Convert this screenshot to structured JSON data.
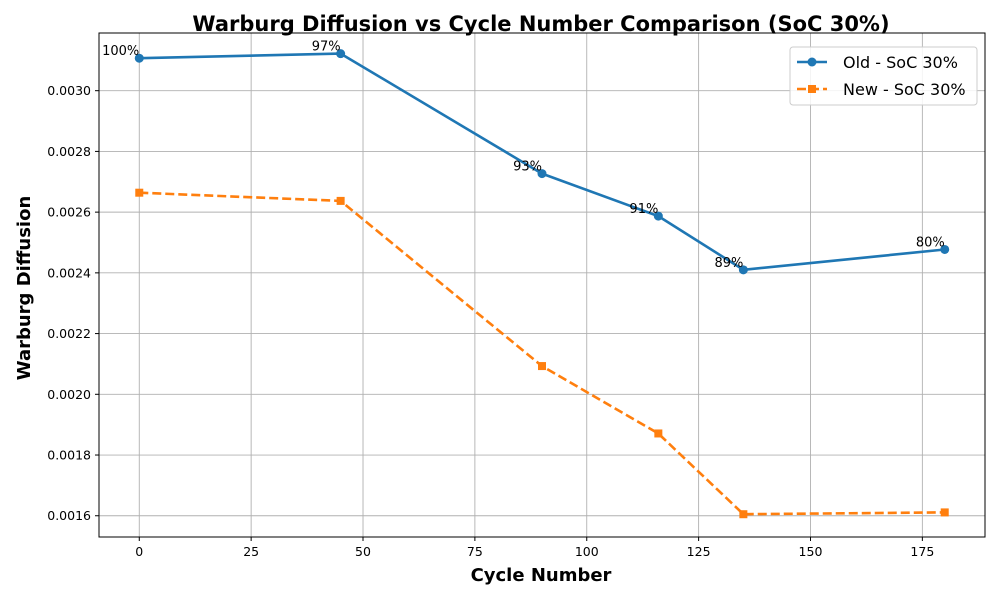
{
  "chart_data": {
    "type": "line",
    "title": "Warburg Diffusion vs Cycle Number Comparison (SoC 30%)",
    "xlabel": "Cycle Number",
    "ylabel": "Warburg Diffusion",
    "xlim": [
      -9,
      189
    ],
    "ylim": [
      0.00153,
      0.00319
    ],
    "xticks": [
      0,
      25,
      50,
      75,
      100,
      125,
      150,
      175
    ],
    "xtick_labels": [
      "0",
      "25",
      "50",
      "75",
      "100",
      "125",
      "150",
      "175"
    ],
    "yticks": [
      0.0016,
      0.0018,
      0.002,
      0.0022,
      0.0024,
      0.0026,
      0.0028,
      0.003
    ],
    "ytick_labels": [
      "0.0016",
      "0.0018",
      "0.0020",
      "0.0022",
      "0.0024",
      "0.0026",
      "0.0028",
      "0.0030"
    ],
    "grid": true,
    "legend_position": "top-right",
    "series": [
      {
        "name": "Old - SoC 30%",
        "color": "#1f77b4",
        "style": "solid",
        "marker": "circle",
        "x": [
          0,
          45,
          90,
          116,
          135,
          180
        ],
        "y": [
          0.003107,
          0.003122,
          0.002727,
          0.002587,
          0.00241,
          0.002477
        ]
      },
      {
        "name": "New - SoC 30%",
        "color": "#ff7f0e",
        "style": "dashed",
        "marker": "square",
        "x": [
          0,
          45,
          90,
          116,
          135,
          180
        ],
        "y": [
          0.002664,
          0.002637,
          0.002093,
          0.001871,
          0.001605,
          0.001611
        ]
      }
    ],
    "annotations": [
      {
        "text": "100%",
        "x": 0,
        "y": 0.003107
      },
      {
        "text": "97%",
        "x": 45,
        "y": 0.003122
      },
      {
        "text": "93%",
        "x": 90,
        "y": 0.002727
      },
      {
        "text": "91%",
        "x": 116,
        "y": 0.002587
      },
      {
        "text": "89%",
        "x": 135,
        "y": 0.00241
      },
      {
        "text": "80%",
        "x": 180,
        "y": 0.002477
      }
    ]
  }
}
